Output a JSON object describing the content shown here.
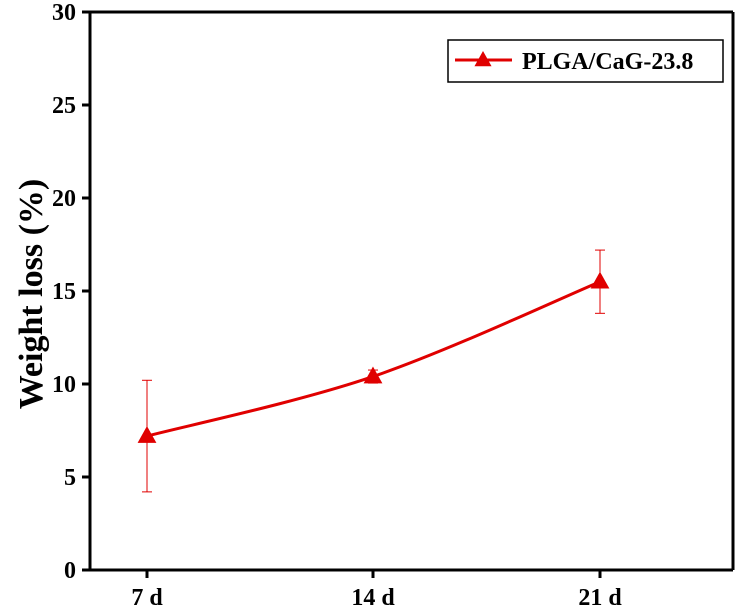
{
  "chart_data": {
    "type": "line",
    "title": "",
    "xlabel": "",
    "ylabel": "Weight loss (%)",
    "categories": [
      "7 d",
      "14 d",
      "21 d"
    ],
    "ylim": [
      0,
      30
    ],
    "yticks": [
      "0",
      "5",
      "10",
      "15",
      "20",
      "25",
      "30"
    ],
    "grid": false,
    "legend": "top-right",
    "series": [
      {
        "name": "PLGA/CaG-23.8",
        "values": [
          7.2,
          10.4,
          15.5
        ],
        "error": [
          3.0,
          0.35,
          1.7
        ],
        "color": "#e00000",
        "marker": "triangle"
      }
    ]
  }
}
